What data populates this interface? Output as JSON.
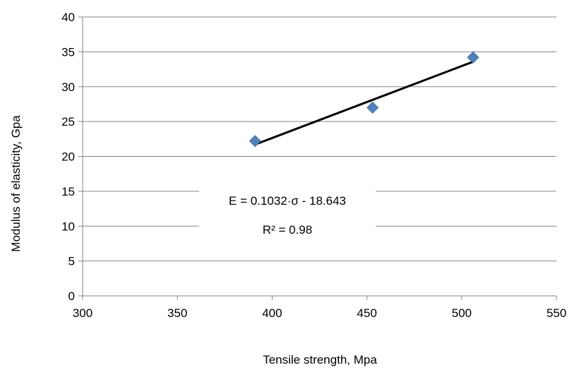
{
  "chart_data": {
    "type": "scatter",
    "xlabel": "Tensile strength, Mpa",
    "ylabel": "Modulus of elasticity, Gpa",
    "xlim": [
      300,
      550
    ],
    "ylim": [
      0,
      40
    ],
    "xticks": [
      "300",
      "350",
      "400",
      "450",
      "500",
      "550"
    ],
    "yticks": [
      "0",
      "5",
      "10",
      "15",
      "20",
      "25",
      "30",
      "35",
      "40"
    ],
    "grid": "horizontal",
    "series": [
      {
        "points": [
          {
            "x": 391,
            "y": 22.2
          },
          {
            "x": 453,
            "y": 27.0
          },
          {
            "x": 506,
            "y": 34.2
          }
        ],
        "marker": "diamond",
        "color": "#4f81bd"
      }
    ],
    "trendline": {
      "slope": 0.1032,
      "intercept": -18.643,
      "x_range": [
        391,
        506
      ],
      "color": "#000000"
    },
    "annotations": {
      "equation": "E = 0.1032·σ - 18.643",
      "r_squared": "R² = 0.98"
    }
  }
}
